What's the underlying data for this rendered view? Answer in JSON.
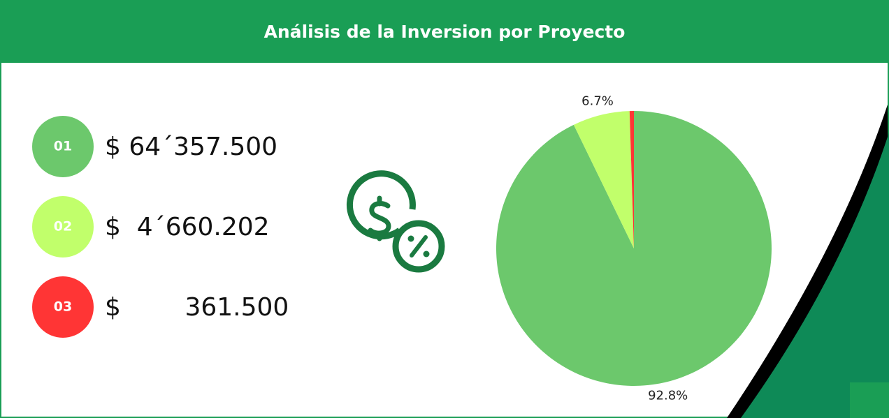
{
  "header": {
    "title": "Análisis de la Inversion por Proyecto"
  },
  "items": [
    {
      "label": "01",
      "amount": "$ 64´357.500",
      "color": "#6cc86c"
    },
    {
      "label": "02",
      "amount": "$  4´660.202",
      "color": "#c1ff6b"
    },
    {
      "label": "03",
      "amount": "$        361.500",
      "color": "#ff3535"
    }
  ],
  "chart_data": {
    "type": "pie",
    "values": [
      92.8,
      6.7,
      0.5
    ],
    "value_labels": [
      "92.8%",
      "6.7%",
      null
    ],
    "colors": [
      "#6cc86c",
      "#c1ff6b",
      "#ff3535"
    ]
  }
}
